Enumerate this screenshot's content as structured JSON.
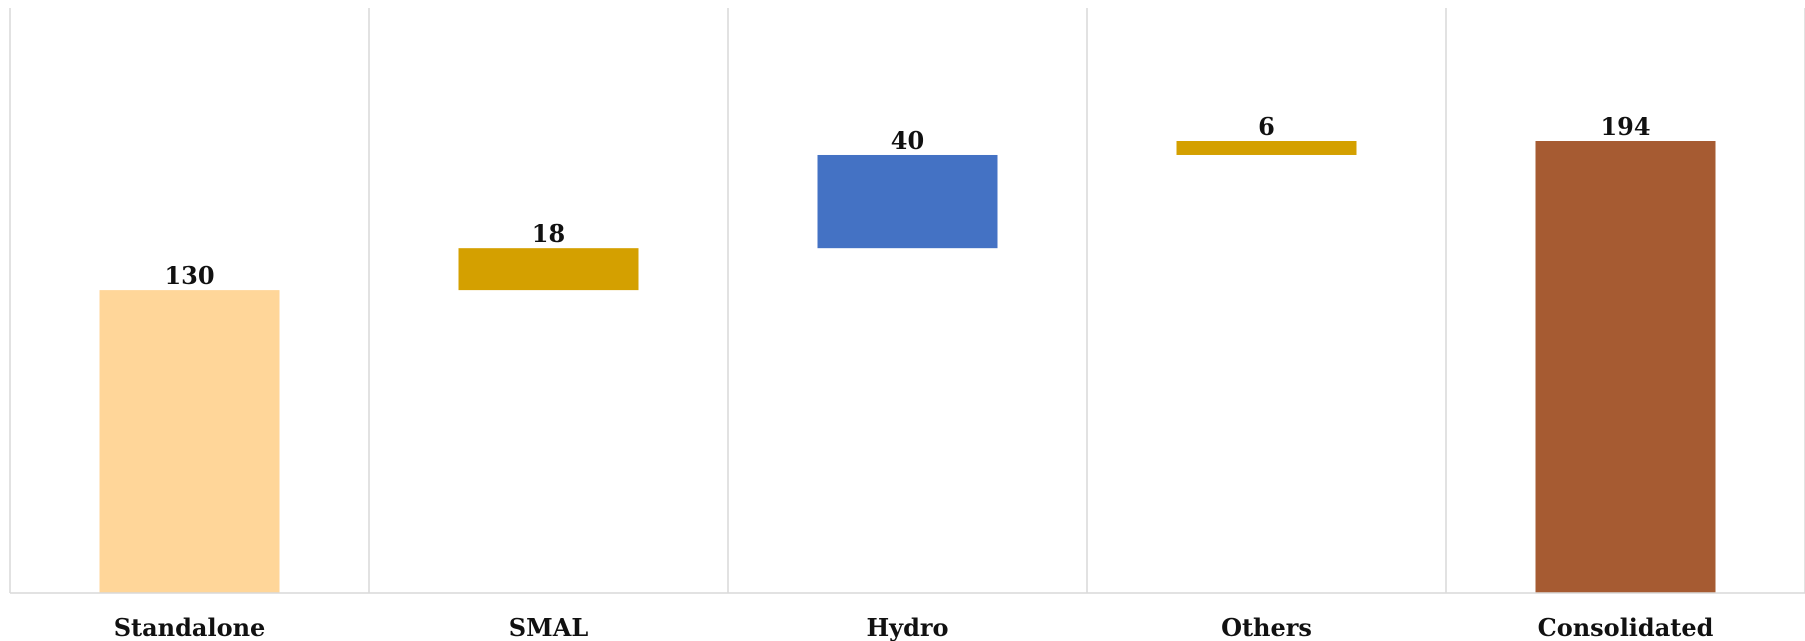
{
  "chart_data": {
    "type": "bar",
    "subtype": "waterfall",
    "categories": [
      "Standalone",
      "SMAL",
      "Hydro",
      "Others",
      "Consolidated"
    ],
    "values": [
      130,
      18,
      40,
      6,
      194
    ],
    "bar_kinds": [
      "total",
      "increment",
      "increment",
      "increment",
      "total"
    ],
    "data_labels": [
      "130",
      "18",
      "40",
      "6",
      "194"
    ],
    "colors": [
      "#FFD699",
      "#D4A000",
      "#4472C4",
      "#D4A000",
      "#A65B32"
    ],
    "ylim": [
      0,
      225
    ],
    "grid": "vertical category separators",
    "legend": "none",
    "title": "",
    "xlabel": "",
    "ylabel": ""
  }
}
